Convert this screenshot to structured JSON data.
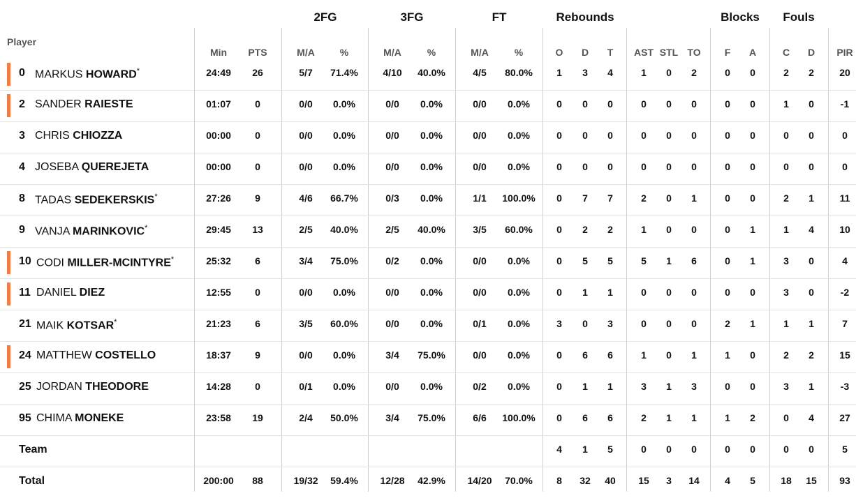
{
  "header": {
    "player_label": "Player",
    "groups": [
      "2FG",
      "3FG",
      "FT",
      "Rebounds",
      "Blocks",
      "Fouls"
    ],
    "columns": [
      "Min",
      "PTS",
      "M/A",
      "%",
      "M/A",
      "%",
      "M/A",
      "%",
      "O",
      "D",
      "T",
      "AST",
      "STL",
      "TO",
      "F",
      "A",
      "C",
      "D",
      "PIR"
    ]
  },
  "players": [
    {
      "num": "0",
      "first": "MARKUS",
      "last": "HOWARD",
      "star": "*",
      "accent": true,
      "stats": [
        "24:49",
        "26",
        "5/7",
        "71.4%",
        "4/10",
        "40.0%",
        "4/5",
        "80.0%",
        "1",
        "3",
        "4",
        "1",
        "0",
        "2",
        "0",
        "0",
        "2",
        "2",
        "20"
      ]
    },
    {
      "num": "2",
      "first": "SANDER",
      "last": "RAIESTE",
      "star": "",
      "accent": true,
      "stats": [
        "01:07",
        "0",
        "0/0",
        "0.0%",
        "0/0",
        "0.0%",
        "0/0",
        "0.0%",
        "0",
        "0",
        "0",
        "0",
        "0",
        "0",
        "0",
        "0",
        "1",
        "0",
        "-1"
      ]
    },
    {
      "num": "3",
      "first": "CHRIS",
      "last": "CHIOZZA",
      "star": "",
      "accent": false,
      "stats": [
        "00:00",
        "0",
        "0/0",
        "0.0%",
        "0/0",
        "0.0%",
        "0/0",
        "0.0%",
        "0",
        "0",
        "0",
        "0",
        "0",
        "0",
        "0",
        "0",
        "0",
        "0",
        "0"
      ]
    },
    {
      "num": "4",
      "first": "JOSEBA",
      "last": "QUEREJETA",
      "star": "",
      "accent": false,
      "stats": [
        "00:00",
        "0",
        "0/0",
        "0.0%",
        "0/0",
        "0.0%",
        "0/0",
        "0.0%",
        "0",
        "0",
        "0",
        "0",
        "0",
        "0",
        "0",
        "0",
        "0",
        "0",
        "0"
      ]
    },
    {
      "num": "8",
      "first": "TADAS",
      "last": "SEDEKERSKIS",
      "star": "*",
      "accent": false,
      "stats": [
        "27:26",
        "9",
        "4/6",
        "66.7%",
        "0/3",
        "0.0%",
        "1/1",
        "100.0%",
        "0",
        "7",
        "7",
        "2",
        "0",
        "1",
        "0",
        "0",
        "2",
        "1",
        "11"
      ]
    },
    {
      "num": "9",
      "first": "VANJA",
      "last": "MARINKOVIC",
      "star": "*",
      "accent": false,
      "stats": [
        "29:45",
        "13",
        "2/5",
        "40.0%",
        "2/5",
        "40.0%",
        "3/5",
        "60.0%",
        "0",
        "2",
        "2",
        "1",
        "0",
        "0",
        "0",
        "1",
        "1",
        "4",
        "10"
      ]
    },
    {
      "num": "10",
      "first": "CODI",
      "last": "MILLER-MCINTYRE",
      "star": "*",
      "accent": true,
      "stats": [
        "25:32",
        "6",
        "3/4",
        "75.0%",
        "0/2",
        "0.0%",
        "0/0",
        "0.0%",
        "0",
        "5",
        "5",
        "5",
        "1",
        "6",
        "0",
        "1",
        "3",
        "0",
        "4"
      ]
    },
    {
      "num": "11",
      "first": "DANIEL",
      "last": "DIEZ",
      "star": "",
      "accent": true,
      "stats": [
        "12:55",
        "0",
        "0/0",
        "0.0%",
        "0/0",
        "0.0%",
        "0/0",
        "0.0%",
        "0",
        "1",
        "1",
        "0",
        "0",
        "0",
        "0",
        "0",
        "3",
        "0",
        "-2"
      ]
    },
    {
      "num": "21",
      "first": "MAIK",
      "last": "KOTSAR",
      "star": "*",
      "accent": false,
      "stats": [
        "21:23",
        "6",
        "3/5",
        "60.0%",
        "0/0",
        "0.0%",
        "0/1",
        "0.0%",
        "3",
        "0",
        "3",
        "0",
        "0",
        "0",
        "2",
        "1",
        "1",
        "1",
        "7"
      ]
    },
    {
      "num": "24",
      "first": "MATTHEW",
      "last": "COSTELLO",
      "star": "",
      "accent": true,
      "stats": [
        "18:37",
        "9",
        "0/0",
        "0.0%",
        "3/4",
        "75.0%",
        "0/0",
        "0.0%",
        "0",
        "6",
        "6",
        "1",
        "0",
        "1",
        "1",
        "0",
        "2",
        "2",
        "15"
      ]
    },
    {
      "num": "25",
      "first": "JORDAN",
      "last": "THEODORE",
      "star": "",
      "accent": false,
      "stats": [
        "14:28",
        "0",
        "0/1",
        "0.0%",
        "0/0",
        "0.0%",
        "0/2",
        "0.0%",
        "0",
        "1",
        "1",
        "3",
        "1",
        "3",
        "0",
        "0",
        "3",
        "1",
        "-3"
      ]
    },
    {
      "num": "95",
      "first": "CHIMA",
      "last": "MONEKE",
      "star": "",
      "accent": false,
      "stats": [
        "23:58",
        "19",
        "2/4",
        "50.0%",
        "3/4",
        "75.0%",
        "6/6",
        "100.0%",
        "0",
        "6",
        "6",
        "2",
        "1",
        "1",
        "1",
        "2",
        "0",
        "4",
        "27"
      ]
    }
  ],
  "team": {
    "label": "Team",
    "stats": [
      "",
      "",
      "",
      "",
      "",
      "",
      "",
      "",
      "4",
      "1",
      "5",
      "0",
      "0",
      "0",
      "0",
      "0",
      "0",
      "0",
      "5"
    ]
  },
  "total": {
    "label": "Total",
    "stats": [
      "200:00",
      "88",
      "19/32",
      "59.4%",
      "12/28",
      "42.9%",
      "14/20",
      "70.0%",
      "8",
      "32",
      "40",
      "15",
      "3",
      "14",
      "4",
      "5",
      "18",
      "15",
      "93"
    ]
  },
  "colors": {
    "accent": "#f47c45",
    "divider": "#cfcfcf",
    "row_line": "#e3e3e3",
    "header_text": "#555555"
  }
}
